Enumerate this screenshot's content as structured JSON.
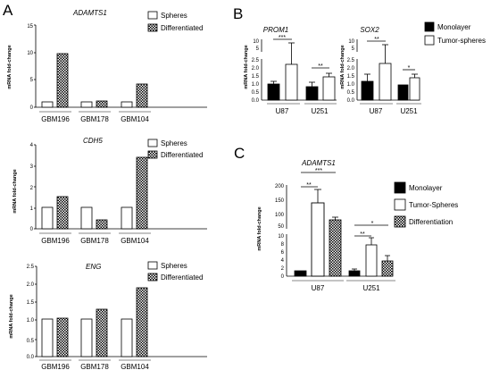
{
  "panels": {
    "A": "A",
    "B": "B",
    "C": "C"
  },
  "colors": {
    "bar_stroke": "#000000",
    "monolayer": "#000000",
    "spheres": "#ffffff",
    "axis": "#000000",
    "underline": "#b0b0b0"
  },
  "chart_data": [
    {
      "id": "A1",
      "type": "bar",
      "title": "ADAMTS1",
      "ylabel": "mRNA fold-change",
      "categories": [
        "GBM196",
        "GBM178",
        "GBM104"
      ],
      "series": [
        {
          "name": "Spheres",
          "pattern": "open",
          "values": [
            1.0,
            1.0,
            1.0
          ]
        },
        {
          "name": "Differentiated",
          "pattern": "checker",
          "values": [
            9.8,
            1.2,
            4.2
          ]
        }
      ],
      "ylim": [
        0,
        15
      ],
      "yticks": [
        "0",
        "5",
        "10",
        "15"
      ]
    },
    {
      "id": "A2",
      "type": "bar",
      "title": "CDH5",
      "ylabel": "mRNA fold-change",
      "categories": [
        "GBM196",
        "GBM178",
        "GBM104"
      ],
      "series": [
        {
          "name": "Spheres",
          "pattern": "open",
          "values": [
            1.0,
            1.0,
            1.0
          ]
        },
        {
          "name": "Differentiated",
          "pattern": "checker",
          "values": [
            1.55,
            0.4,
            3.4
          ]
        }
      ],
      "ylim": [
        0,
        4
      ],
      "yticks": [
        "0",
        "1",
        "2",
        "3",
        "4"
      ]
    },
    {
      "id": "A3",
      "type": "bar",
      "title": "ENG",
      "ylabel": "mRNA fold-change",
      "categories": [
        "GBM196",
        "GBM178",
        "GBM104"
      ],
      "series": [
        {
          "name": "Spheres",
          "pattern": "open",
          "values": [
            1.0,
            1.0,
            1.0
          ]
        },
        {
          "name": "Differentiated",
          "pattern": "checker",
          "values": [
            1.03,
            1.3,
            1.93
          ]
        }
      ],
      "ylim": [
        0,
        2.5
      ],
      "yticks": [
        "0.0",
        "0.5",
        "1.0",
        "1.5",
        "2.0",
        "2.5"
      ]
    },
    {
      "id": "B1",
      "type": "bar",
      "title": "PROM1",
      "ylabel": "mRNA fold-change",
      "categories": [
        "U87",
        "U251"
      ],
      "series": [
        {
          "name": "Monolayer",
          "pattern": "solid",
          "values": [
            1.0,
            0.75
          ],
          "errors": [
            0.12,
            0.25
          ]
        },
        {
          "name": "Tumor-spheres",
          "pattern": "open",
          "values": [
            2.4,
            1.45
          ],
          "errors": [
            2.5,
            0.2
          ]
        }
      ],
      "ylim": [
        0,
        10
      ],
      "break": [
        2.5,
        5
      ],
      "yticks": [
        "0.0",
        "0.5",
        "1.0",
        "1.5",
        "2.0",
        "2.5",
        "5",
        "10"
      ],
      "significance": [
        "***",
        "**"
      ]
    },
    {
      "id": "B2",
      "type": "bar",
      "title": "SOX2",
      "ylabel": "mRNA fold-change",
      "categories": [
        "U87",
        "U251"
      ],
      "series": [
        {
          "name": "Monolayer",
          "pattern": "solid",
          "values": [
            1.15,
            0.9
          ],
          "errors": [
            0.4,
            0.05
          ]
        },
        {
          "name": "Tumor-spheres",
          "pattern": "open",
          "values": [
            2.4,
            1.35
          ],
          "errors": [
            3,
            0.15
          ]
        }
      ],
      "ylim": [
        0,
        10
      ],
      "break": [
        2.5,
        5
      ],
      "yticks": [
        "0.0",
        "0.5",
        "1.0",
        "1.5",
        "2.0",
        "2.5",
        "5",
        "10"
      ],
      "significance": [
        "**",
        "*"
      ]
    },
    {
      "id": "C",
      "type": "bar",
      "title": "ADAMTS1",
      "ylabel": "mRNA fold-change",
      "categories": [
        "U87",
        "U251"
      ],
      "series": [
        {
          "name": "Monolayer",
          "pattern": "solid",
          "values": [
            1.0,
            1.1
          ],
          "errors": [
            0.15,
            0.3
          ]
        },
        {
          "name": "Tumor-Spheres",
          "pattern": "open",
          "values": [
            140,
            6.4
          ],
          "errors": [
            45,
            1.6
          ]
        },
        {
          "name": "Differentiation",
          "pattern": "checker",
          "values": [
            70,
            3.2
          ],
          "errors": [
            7,
            1.1
          ]
        }
      ],
      "ylim": [
        0,
        200
      ],
      "break": [
        10,
        50
      ],
      "yticks": [
        "0",
        "2",
        "4",
        "6",
        "8",
        "10",
        "50",
        "100",
        "150",
        "200"
      ],
      "significance": [
        "**",
        "***",
        "**",
        "*"
      ]
    }
  ]
}
